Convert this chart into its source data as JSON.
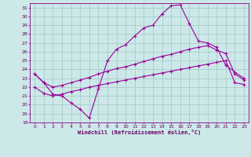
{
  "xlabel": "Windchill (Refroidissement éolien,°C)",
  "bg_color": "#cce8e8",
  "grid_color": "#aacccc",
  "line_color": "#990099",
  "xlim": [
    -0.5,
    23.5
  ],
  "ylim": [
    18,
    31.5
  ],
  "xticks": [
    0,
    1,
    2,
    3,
    4,
    5,
    6,
    7,
    8,
    9,
    10,
    11,
    12,
    13,
    14,
    15,
    16,
    17,
    18,
    19,
    20,
    21,
    22,
    23
  ],
  "yticks": [
    18,
    19,
    20,
    21,
    22,
    23,
    24,
    25,
    26,
    27,
    28,
    29,
    30,
    31
  ],
  "line1_x": [
    0,
    1,
    2,
    3,
    4,
    5,
    6,
    7,
    8,
    9,
    10,
    11,
    12,
    13,
    14,
    15,
    16,
    17,
    18,
    19,
    20,
    21,
    22,
    23
  ],
  "line1_y": [
    23.5,
    22.5,
    21.2,
    21.0,
    20.2,
    19.5,
    18.5,
    21.8,
    25.0,
    26.3,
    26.8,
    27.8,
    28.7,
    29.0,
    30.3,
    31.2,
    31.3,
    29.2,
    27.2,
    27.0,
    26.5,
    24.5,
    23.7,
    23.0
  ],
  "line2_x": [
    0,
    1,
    2,
    3,
    4,
    5,
    6,
    7,
    8,
    9,
    10,
    11,
    12,
    13,
    14,
    15,
    16,
    17,
    18,
    19,
    20,
    21,
    22,
    23
  ],
  "line2_y": [
    23.5,
    22.5,
    22.0,
    22.2,
    22.5,
    22.8,
    23.1,
    23.5,
    23.8,
    24.1,
    24.3,
    24.6,
    24.9,
    25.2,
    25.5,
    25.7,
    26.0,
    26.3,
    26.5,
    26.7,
    26.2,
    25.8,
    23.5,
    22.8
  ],
  "line3_x": [
    0,
    1,
    2,
    3,
    4,
    5,
    6,
    7,
    8,
    9,
    10,
    11,
    12,
    13,
    14,
    15,
    16,
    17,
    18,
    19,
    20,
    21,
    22,
    23
  ],
  "line3_y": [
    22.0,
    21.3,
    21.0,
    21.2,
    21.5,
    21.7,
    22.0,
    22.2,
    22.4,
    22.6,
    22.8,
    23.0,
    23.2,
    23.4,
    23.6,
    23.8,
    24.0,
    24.2,
    24.4,
    24.6,
    24.8,
    25.0,
    22.5,
    22.3
  ]
}
